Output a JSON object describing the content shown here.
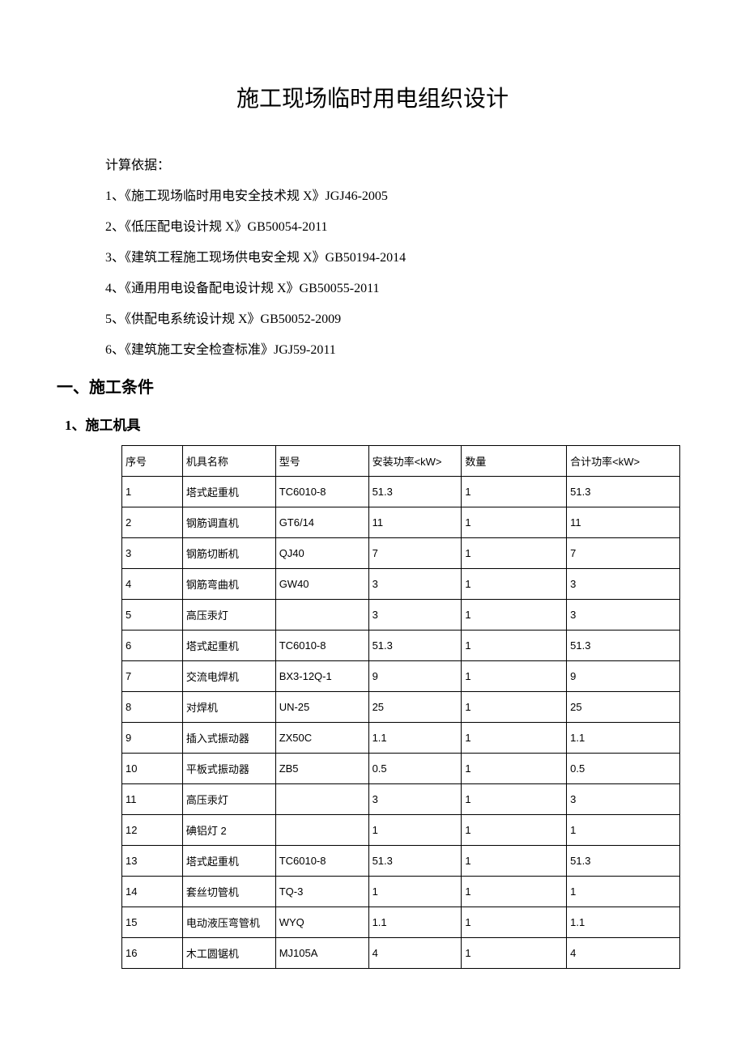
{
  "title": "施工现场临时用电组织设计",
  "basis": {
    "label": "计算依据：",
    "items": [
      "1、《施工现场临时用电安全技术规 X》JGJ46-2005",
      "2、《低压配电设计规 X》GB50054-2011",
      "3、《建筑工程施工现场供电安全规 X》GB50194-2014",
      "4、《通用用电设备配电设计规 X》GB50055-2011",
      "5、《供配电系统设计规 X》GB50052-2009",
      "6、《建筑施工安全检查标准》JGJ59-2011"
    ]
  },
  "section1": {
    "heading": "一、施工条件",
    "sub1": {
      "heading": "1、施工机具",
      "table": {
        "columns": [
          "序号",
          "机具名称",
          "型号",
          "安装功率<kW>",
          "数量",
          "合计功率<kW>"
        ],
        "rows": [
          [
            "1",
            "塔式起重机",
            "TC6010-8",
            "51.3",
            "1",
            "51.3"
          ],
          [
            "2",
            "钢筋调直机",
            "GT6/14",
            "11",
            "1",
            "11"
          ],
          [
            "3",
            "钢筋切断机",
            "QJ40",
            "7",
            "1",
            "7"
          ],
          [
            "4",
            "钢筋弯曲机",
            "GW40",
            "3",
            "1",
            "3"
          ],
          [
            "5",
            "高压汞灯",
            "",
            "3",
            "1",
            "3"
          ],
          [
            "6",
            "塔式起重机",
            "TC6010-8",
            "51.3",
            "1",
            "51.3"
          ],
          [
            "7",
            "交流电焊机",
            "BX3-12Q-1",
            "9",
            "1",
            "9"
          ],
          [
            "8",
            "对焊机",
            "UN-25",
            "25",
            "1",
            "25"
          ],
          [
            "9",
            "插入式振动器",
            "ZX50C",
            "1.1",
            "1",
            "1.1"
          ],
          [
            "10",
            "平板式振动器",
            "ZB5",
            "0.5",
            "1",
            "0.5"
          ],
          [
            "11",
            "高压汞灯",
            "",
            "3",
            "1",
            "3"
          ],
          [
            "12",
            "碘铝灯 2",
            "",
            "1",
            "1",
            "1"
          ],
          [
            "13",
            "塔式起重机",
            "TC6010-8",
            "51.3",
            "1",
            "51.3"
          ],
          [
            "14",
            "套丝切管机",
            "TQ-3",
            "1",
            "1",
            "1"
          ],
          [
            "15",
            "电动液压弯管机",
            "WYQ",
            "1.1",
            "1",
            "1.1"
          ],
          [
            "16",
            "木工圆锯机",
            "MJ105A",
            "4",
            "1",
            "4"
          ]
        ]
      }
    }
  },
  "style": {
    "background_color": "#ffffff",
    "text_color": "#000000",
    "border_color": "#000000",
    "title_fontsize": 28,
    "body_fontsize": 16,
    "table_fontsize": 13
  }
}
